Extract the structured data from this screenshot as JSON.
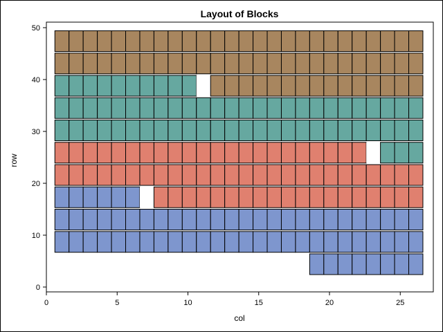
{
  "chart_data": {
    "type": "heatmap",
    "title": "Layout of Blocks",
    "xlabel": "col",
    "ylabel": "row",
    "xlim": [
      0,
      27
    ],
    "ylim": [
      0,
      50
    ],
    "xticks": [
      0,
      5,
      10,
      15,
      20,
      25
    ],
    "yticks": [
      0,
      10,
      20,
      30,
      40,
      50
    ],
    "cols": 26,
    "block_width": 1,
    "block_height": 4,
    "colors": {
      "brown": "#A8865F",
      "teal": "#66A8A0",
      "salmon": "#E0806F",
      "blue": "#7E96CE",
      "gap": "#FFFFFF",
      "grid": "#000000"
    },
    "rows": [
      {
        "y_bottom": 45.4,
        "cells": "BBBBBBBBBBBBBBBBBBBBBBBBBB"
      },
      {
        "y_bottom": 41.1,
        "cells": "BBBBBBBBBBBBBBBBBBBBBBBBBB"
      },
      {
        "y_bottom": 36.8,
        "cells": "TTTTTTTTTT.BBBBBBBBBBBBBBB"
      },
      {
        "y_bottom": 32.5,
        "cells": "TTTTTTTTTTTTTTTTTTTTTTTTTT"
      },
      {
        "y_bottom": 28.2,
        "cells": "TTTTTTTTTTTTTTTTTTTTTTTTTT"
      },
      {
        "y_bottom": 23.9,
        "cells": "SSSSSSSSSSSSSSSSSSSSSS.TTT"
      },
      {
        "y_bottom": 19.6,
        "cells": "SSSSSSSSSSSSSSSSSSSSSSSSSS"
      },
      {
        "y_bottom": 15.3,
        "cells": "LLLLLL.SSSSSSSSSSSSSSSSSSS"
      },
      {
        "y_bottom": 11.0,
        "cells": "LLLLLLLLLLLLLLLLLLLLLLLLLL"
      },
      {
        "y_bottom": 6.7,
        "cells": "LLLLLLLLLLLLLLLLLLLLLLLLLL"
      },
      {
        "y_bottom": 2.4,
        "cells": "                  LLLLLLLL"
      }
    ],
    "legend": {
      "B": "brown",
      "T": "teal",
      "S": "salmon",
      "L": "blue",
      ".": "gap"
    }
  }
}
